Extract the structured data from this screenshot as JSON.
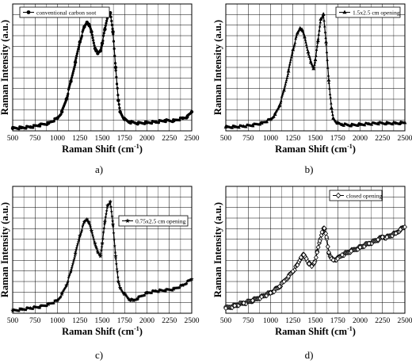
{
  "figure": {
    "axis_xlabel_main": "Raman Shift (cm",
    "axis_xlabel_sup": "-1",
    "axis_xlabel_close": ")",
    "axis_ylabel": "Raman Intensity (a.u.)"
  },
  "chart_data": [
    {
      "id": "a",
      "caption": "a)",
      "type": "scatter",
      "marker": "filled-circle",
      "series": [
        {
          "name": "conventional carbon soot",
          "x": [
            500,
            600,
            700,
            800,
            900,
            1000,
            1050,
            1100,
            1150,
            1200,
            1250,
            1300,
            1330,
            1350,
            1380,
            1420,
            1450,
            1480,
            1500,
            1530,
            1560,
            1590,
            1620,
            1650,
            1680,
            1700,
            1750,
            1800,
            1900,
            2000,
            2100,
            2200,
            2300,
            2400,
            2450,
            2500
          ],
          "y": [
            0.02,
            0.025,
            0.03,
            0.045,
            0.06,
            0.1,
            0.15,
            0.25,
            0.39,
            0.54,
            0.7,
            0.82,
            0.855,
            0.84,
            0.78,
            0.65,
            0.61,
            0.63,
            0.69,
            0.8,
            0.9,
            0.93,
            0.78,
            0.5,
            0.24,
            0.15,
            0.09,
            0.07,
            0.06,
            0.065,
            0.07,
            0.08,
            0.08,
            0.1,
            0.11,
            0.15
          ]
        }
      ],
      "xlim": [
        500,
        2500
      ],
      "xticks": [
        "500",
        "750",
        "1000",
        "1250",
        "1500",
        "1750",
        "2000",
        "2250",
        "2500"
      ],
      "ylim": [
        0,
        1
      ]
    },
    {
      "id": "b",
      "caption": "b)",
      "type": "scatter",
      "marker": "filled-triangle",
      "series": [
        {
          "name": "1.5x2.5 cm opening",
          "x": [
            500,
            600,
            700,
            800,
            900,
            1000,
            1050,
            1100,
            1150,
            1200,
            1250,
            1300,
            1330,
            1350,
            1380,
            1420,
            1450,
            1480,
            1500,
            1530,
            1560,
            1590,
            1620,
            1650,
            1680,
            1700,
            1750,
            1800,
            1900,
            2000,
            2100,
            2200,
            2300,
            2400,
            2450,
            2500
          ],
          "y": [
            0.03,
            0.032,
            0.036,
            0.045,
            0.06,
            0.09,
            0.13,
            0.2,
            0.32,
            0.47,
            0.64,
            0.77,
            0.81,
            0.8,
            0.74,
            0.62,
            0.54,
            0.49,
            0.56,
            0.71,
            0.88,
            0.92,
            0.7,
            0.4,
            0.18,
            0.1,
            0.06,
            0.05,
            0.045,
            0.05,
            0.055,
            0.06,
            0.06,
            0.06,
            0.062,
            0.065
          ]
        }
      ],
      "xlim": [
        500,
        2500
      ],
      "xticks": [
        "500",
        "750",
        "1000",
        "1250",
        "1500",
        "1750",
        "2000",
        "2250",
        "2500"
      ],
      "ylim": [
        0,
        1
      ]
    },
    {
      "id": "c",
      "caption": "c)",
      "type": "scatter",
      "marker": "filled-star",
      "series": [
        {
          "name": "0.75x2.5 cm opening",
          "x": [
            500,
            600,
            700,
            800,
            900,
            1000,
            1050,
            1100,
            1150,
            1200,
            1250,
            1300,
            1330,
            1350,
            1380,
            1420,
            1450,
            1480,
            1500,
            1530,
            1560,
            1590,
            1620,
            1650,
            1680,
            1700,
            1750,
            1800,
            1850,
            1900,
            2000,
            2100,
            2200,
            2300,
            2400,
            2500
          ],
          "y": [
            0.02,
            0.03,
            0.04,
            0.05,
            0.07,
            0.1,
            0.15,
            0.22,
            0.33,
            0.47,
            0.61,
            0.72,
            0.74,
            0.72,
            0.65,
            0.55,
            0.48,
            0.45,
            0.55,
            0.72,
            0.85,
            0.88,
            0.7,
            0.45,
            0.25,
            0.2,
            0.15,
            0.11,
            0.1,
            0.12,
            0.16,
            0.175,
            0.18,
            0.19,
            0.22,
            0.27
          ]
        }
      ],
      "xlim": [
        500,
        2500
      ],
      "xticks": [
        "500",
        "750",
        "1000",
        "1250",
        "1500",
        "1750",
        "2000",
        "2250",
        "2500"
      ],
      "ylim": [
        0,
        1
      ]
    },
    {
      "id": "d",
      "caption": "d)",
      "type": "scatter",
      "marker": "open-diamond",
      "series": [
        {
          "name": "closed opening",
          "x": [
            500,
            600,
            700,
            800,
            900,
            1000,
            1100,
            1150,
            1200,
            1250,
            1300,
            1340,
            1370,
            1400,
            1430,
            1460,
            1490,
            1520,
            1550,
            1575,
            1600,
            1625,
            1650,
            1680,
            1700,
            1750,
            1800,
            1900,
            2000,
            2100,
            2200,
            2250,
            2300,
            2400,
            2450,
            2500
          ],
          "y": [
            0.04,
            0.06,
            0.08,
            0.1,
            0.13,
            0.16,
            0.21,
            0.25,
            0.29,
            0.33,
            0.38,
            0.44,
            0.46,
            0.43,
            0.39,
            0.37,
            0.4,
            0.48,
            0.57,
            0.64,
            0.67,
            0.6,
            0.48,
            0.43,
            0.42,
            0.43,
            0.46,
            0.49,
            0.52,
            0.55,
            0.58,
            0.6,
            0.6,
            0.63,
            0.66,
            0.68
          ]
        }
      ],
      "xlim": [
        500,
        2500
      ],
      "xticks": [
        "500",
        "750",
        "1000",
        "1250",
        "1500",
        "1750",
        "2000",
        "2250",
        "2500"
      ],
      "ylim": [
        0,
        1
      ]
    }
  ]
}
